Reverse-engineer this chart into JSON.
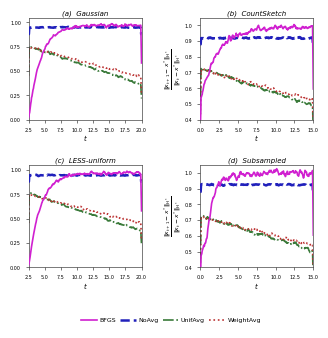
{
  "subtitles": [
    "(a)  Gaussian",
    "(b)  CountSketch",
    "(c)  LESS-uniform",
    "(d)  Subsampled"
  ],
  "ylabel_right": "$\\|x_{t+1} - x^*\\|_{H^*}$\n$\\|x_t - x^*\\|_{H^*}$",
  "xlabel": "$t$",
  "legend_labels": [
    "BFGS",
    "NoAvg",
    "UnifAvg",
    "WeightAvg"
  ],
  "legend_colors": [
    "#d020d0",
    "#2020bb",
    "#3a7a3a",
    "#bb3333"
  ],
  "legend_styles": [
    "-",
    "--",
    "-.",
    ":"
  ],
  "lw_vals": [
    1.2,
    1.8,
    1.2,
    1.2
  ],
  "xlim_left": [
    2.5,
    20.0
  ],
  "xlim_right": [
    0.0,
    15.0
  ],
  "xticks_left": [
    2.5,
    5.0,
    7.5,
    10.0,
    12.5,
    15.0,
    17.5,
    20.0
  ],
  "xticks_right": [
    0.0,
    2.5,
    5.0,
    7.5,
    10.0,
    12.5,
    15.0
  ],
  "ylim_left": [
    0.0,
    1.05
  ],
  "ylim_right": [
    0.4,
    1.05
  ],
  "yticks_left": [
    0.0,
    0.25,
    0.5,
    0.75,
    1.0
  ],
  "yticks_right": [
    0.4,
    0.5,
    0.6,
    0.7,
    0.8,
    0.9,
    1.0
  ],
  "background": "#ffffff"
}
